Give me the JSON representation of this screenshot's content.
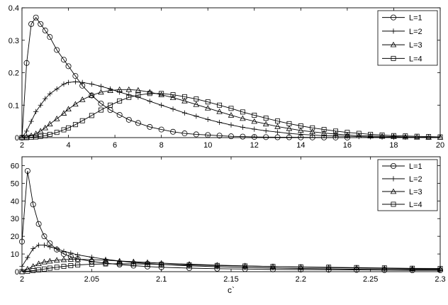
{
  "chart_data": [
    {
      "type": "line",
      "x": [
        2,
        2.2,
        2.4,
        2.6,
        2.8,
        3,
        3.2,
        3.5,
        3.8,
        4,
        4.3,
        4.6,
        5,
        5.4,
        5.8,
        6.2,
        6.6,
        7,
        7.5,
        8,
        8.5,
        9,
        9.5,
        10,
        10.5,
        11,
        11.5,
        12,
        12.5,
        13,
        13.5,
        14,
        14.5,
        15,
        15.5,
        16,
        16.5,
        17,
        17.5,
        18,
        18.5,
        19,
        19.5,
        20
      ],
      "xlim": [
        2,
        20
      ],
      "ylim": [
        0,
        0.4
      ],
      "xticks": [
        "2",
        "4",
        "6",
        "8",
        "10",
        "12",
        "14",
        "16",
        "18",
        "20"
      ],
      "yticks": [
        "0",
        "0.1",
        "0.2",
        "0.3",
        "0.4"
      ],
      "legend_position": "top-right",
      "series": [
        {
          "name": "L=1",
          "marker": "circle",
          "values": [
            0,
            0.23,
            0.35,
            0.37,
            0.35,
            0.33,
            0.31,
            0.27,
            0.24,
            0.22,
            0.19,
            0.16,
            0.13,
            0.105,
            0.085,
            0.07,
            0.055,
            0.045,
            0.033,
            0.025,
            0.018,
            0.013,
            0.01,
            0.008,
            0.006,
            0.004,
            0.003,
            0.002,
            0.0015,
            0.001,
            0.001,
            0.0008,
            0.0006,
            0.0005,
            0.0004,
            0.0003,
            null,
            null,
            null,
            null,
            null,
            null,
            null,
            null
          ]
        },
        {
          "name": "L=2",
          "marker": "plus",
          "values": [
            0,
            0.02,
            0.05,
            0.08,
            0.1,
            0.12,
            0.135,
            0.15,
            0.165,
            0.17,
            0.172,
            0.17,
            0.165,
            0.158,
            0.15,
            0.14,
            0.132,
            0.125,
            0.112,
            0.1,
            0.088,
            0.076,
            0.066,
            0.056,
            0.047,
            0.039,
            0.032,
            0.026,
            0.021,
            0.017,
            0.013,
            0.01,
            0.008,
            0.006,
            0.005,
            0.004,
            0.003,
            0.002,
            0.0015,
            0.001,
            0.001,
            null,
            null,
            null
          ]
        },
        {
          "name": "L=3",
          "marker": "triangle",
          "values": [
            0,
            0.002,
            0.006,
            0.012,
            0.02,
            0.03,
            0.042,
            0.058,
            0.075,
            0.088,
            0.103,
            0.117,
            0.13,
            0.14,
            0.145,
            0.148,
            0.148,
            0.146,
            0.14,
            0.132,
            0.123,
            0.113,
            0.102,
            0.091,
            0.08,
            0.069,
            0.059,
            0.05,
            0.042,
            0.034,
            0.028,
            0.022,
            0.018,
            0.014,
            0.011,
            0.008,
            0.006,
            0.005,
            0.004,
            0.003,
            0.002,
            0.0015,
            0.001,
            0.001
          ]
        },
        {
          "name": "L=4",
          "marker": "square",
          "values": [
            0,
            0,
            0.001,
            0.002,
            0.004,
            0.006,
            0.01,
            0.016,
            0.024,
            0.03,
            0.04,
            0.052,
            0.068,
            0.085,
            0.1,
            0.113,
            0.124,
            0.131,
            0.136,
            0.136,
            0.132,
            0.126,
            0.119,
            0.11,
            0.1,
            0.09,
            0.079,
            0.069,
            0.06,
            0.051,
            0.043,
            0.036,
            0.03,
            0.025,
            0.02,
            0.016,
            0.013,
            0.01,
            0.008,
            0.006,
            0.005,
            0.004,
            0.003,
            0.002
          ]
        }
      ]
    },
    {
      "type": "line",
      "x": [
        2,
        2.004,
        2.008,
        2.012,
        2.016,
        2.02,
        2.025,
        2.03,
        2.035,
        2.04,
        2.05,
        2.06,
        2.07,
        2.08,
        2.09,
        2.1,
        2.12,
        2.14,
        2.16,
        2.18,
        2.2,
        2.22,
        2.24,
        2.26,
        2.28,
        2.3
      ],
      "xlim": [
        2,
        2.3
      ],
      "ylim": [
        0,
        65
      ],
      "xlabel": "c`",
      "xticks": [
        "2",
        "2.05",
        "2.1",
        "2.15",
        "2.2",
        "2.25",
        "2.3"
      ],
      "yticks": [
        "0",
        "10",
        "20",
        "30",
        "40",
        "50",
        "60"
      ],
      "legend_position": "top-right",
      "series": [
        {
          "name": "L=1",
          "marker": "circle",
          "values": [
            17,
            57,
            38,
            27,
            20,
            16,
            12.5,
            10,
            8.5,
            7.2,
            5.8,
            4.8,
            4,
            3.4,
            2.9,
            2.5,
            2,
            1.7,
            1.5,
            1.3,
            1.2,
            1.1,
            1,
            0.9,
            0.8,
            0.8
          ]
        },
        {
          "name": "L=2",
          "marker": "plus",
          "values": [
            3,
            8,
            13,
            15,
            15,
            14,
            13,
            11.5,
            10.5,
            9.5,
            8.2,
            7,
            6,
            5.2,
            4.6,
            4.1,
            3.3,
            2.8,
            2.4,
            2.1,
            1.8,
            1.6,
            1.4,
            1.3,
            1.2,
            1.1
          ]
        },
        {
          "name": "L=3",
          "marker": "triangle",
          "values": [
            0,
            1.5,
            3,
            4.5,
            5.5,
            6,
            6.5,
            6.8,
            7,
            7,
            6.8,
            6.5,
            6,
            5.6,
            5.2,
            4.8,
            4.2,
            3.7,
            3.3,
            2.9,
            2.6,
            2.3,
            2.1,
            1.9,
            1.7,
            1.5
          ]
        },
        {
          "name": "L=4",
          "marker": "square",
          "values": [
            0,
            0.2,
            0.6,
            1,
            1.5,
            2,
            2.5,
            3,
            3.4,
            3.8,
            4.2,
            4.4,
            4.5,
            4.4,
            4.3,
            4.1,
            3.8,
            3.5,
            3.2,
            2.9,
            2.7,
            2.5,
            2.3,
            2.1,
            1.9,
            1.8
          ]
        }
      ]
    }
  ]
}
